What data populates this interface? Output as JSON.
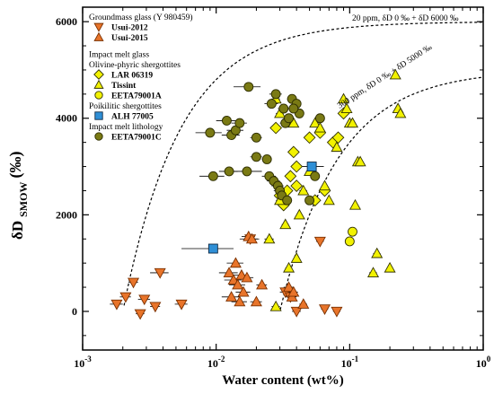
{
  "chart_data": {
    "type": "scatter",
    "x_scale": "log",
    "xlim": [
      0.001,
      1
    ],
    "ylim": [
      -800,
      6300
    ],
    "x_ticks": [
      "10^-3",
      "10^-2",
      "10^-1",
      "10^0"
    ],
    "y_ticks": [
      "0",
      "2000",
      "4000",
      "6000"
    ],
    "xlabel": "Water content (wt%)",
    "ylabel_main": "δD",
    "ylabel_sub": "SMOW",
    "ylabel_unit": "(‰)",
    "grid": false,
    "legend_position": "top-left",
    "legend": {
      "groups": [
        {
          "title": "Groundmass glass (Y 980459)",
          "entries": [
            {
              "label": "Usui-2012",
              "series": "usui2012"
            },
            {
              "label": "Usui-2015",
              "series": "usui2015"
            }
          ]
        },
        {
          "title": "Impact melt glass",
          "entries": []
        },
        {
          "title": "Olivine-phyric shergottites",
          "entries": [
            {
              "label": "LAR 06319",
              "series": "lar"
            },
            {
              "label": "Tissint",
              "series": "tissint"
            },
            {
              "label": "EETA79001A",
              "series": "eeta_a"
            }
          ]
        },
        {
          "title": "Poikilitic shergottites",
          "entries": [
            {
              "label": "ALH 77005",
              "series": "alh"
            }
          ]
        },
        {
          "title": "Impact melt lithology",
          "entries": [
            {
              "label": "EETA79001C",
              "series": "eeta_c"
            }
          ]
        }
      ]
    },
    "curves": [
      {
        "label": "20 ppm, δD 0 ‰ + δD 6000 ‰",
        "mix_ppm": 20,
        "dD_low": 0,
        "dD_high": 6000
      },
      {
        "label": "300 ppm, δD 0 ‰ + δD 5000 ‰",
        "mix_ppm": 300,
        "dD_low": 0,
        "dD_high": 5000
      }
    ],
    "series": [
      {
        "key": "usui2012",
        "name": "Usui-2012",
        "marker": "triangle-down",
        "color": "#E8742A",
        "edge": "#7a3000",
        "points": [
          [
            0.0018,
            150
          ],
          [
            0.0021,
            300
          ],
          [
            0.0024,
            600
          ],
          [
            0.0027,
            -50
          ],
          [
            0.0029,
            250
          ],
          [
            0.0035,
            100
          ],
          [
            0.0038,
            800
          ],
          [
            0.0055,
            150
          ],
          [
            0.018,
            1500
          ],
          [
            0.033,
            400
          ],
          [
            0.036,
            300
          ],
          [
            0.04,
            0
          ],
          [
            0.06,
            1450
          ],
          [
            0.065,
            50
          ],
          [
            0.08,
            0
          ]
        ],
        "xerr": [
          0.0002,
          0.0002,
          0.0002,
          0.0002,
          0.0003,
          0.0003,
          0.0006,
          0.0006,
          0.003,
          0.003,
          0.003,
          0.003,
          0.004,
          0.004,
          0.005
        ]
      },
      {
        "key": "usui2015",
        "name": "Usui-2015",
        "marker": "triangle-up",
        "color": "#E8742A",
        "edge": "#7a3000",
        "points": [
          [
            0.0125,
            800
          ],
          [
            0.013,
            300
          ],
          [
            0.0135,
            650
          ],
          [
            0.014,
            1000
          ],
          [
            0.0145,
            550
          ],
          [
            0.015,
            200
          ],
          [
            0.0155,
            750
          ],
          [
            0.016,
            400
          ],
          [
            0.017,
            700
          ],
          [
            0.0175,
            1550
          ],
          [
            0.0185,
            1500
          ],
          [
            0.02,
            200
          ],
          [
            0.022,
            550
          ],
          [
            0.035,
            500
          ],
          [
            0.037,
            300
          ],
          [
            0.038,
            400
          ],
          [
            0.045,
            150
          ]
        ],
        "xerr": [
          0.002,
          0.002,
          0.002,
          0.002,
          0.002,
          0.002,
          0.002,
          0.002,
          0.002,
          0.002,
          0.002,
          0.002,
          0.002,
          0.003,
          0.003,
          0.003,
          0.003
        ]
      },
      {
        "key": "lar",
        "name": "LAR 06319",
        "marker": "diamond",
        "color": "#F2F200",
        "edge": "#333300",
        "points": [
          [
            0.028,
            3800
          ],
          [
            0.03,
            2400
          ],
          [
            0.032,
            2200
          ],
          [
            0.034,
            2500
          ],
          [
            0.036,
            2800
          ],
          [
            0.038,
            3300
          ],
          [
            0.04,
            3000
          ],
          [
            0.04,
            2600
          ],
          [
            0.05,
            3600
          ],
          [
            0.055,
            2300
          ],
          [
            0.06,
            3700
          ],
          [
            0.065,
            2500
          ],
          [
            0.075,
            3500
          ],
          [
            0.082,
            3600
          ],
          [
            0.09,
            4100
          ]
        ],
        "xerr": [
          0.002,
          0.002,
          0.002,
          0.002,
          0.002,
          0.002,
          0.002,
          0.002,
          0.003,
          0.003,
          0.003,
          0.003,
          0.004,
          0.004,
          0.004
        ]
      },
      {
        "key": "tissint",
        "name": "Tissint",
        "marker": "triangle-up",
        "color": "#F2F200",
        "edge": "#333300",
        "points": [
          [
            0.025,
            1500
          ],
          [
            0.028,
            100
          ],
          [
            0.03,
            2300
          ],
          [
            0.033,
            1800
          ],
          [
            0.035,
            900
          ],
          [
            0.038,
            3900
          ],
          [
            0.04,
            1100
          ],
          [
            0.042,
            2000
          ],
          [
            0.045,
            2500
          ],
          [
            0.05,
            2900
          ],
          [
            0.055,
            3900
          ],
          [
            0.06,
            3800
          ],
          [
            0.065,
            2600
          ],
          [
            0.07,
            2300
          ],
          [
            0.08,
            3400
          ],
          [
            0.09,
            4400
          ],
          [
            0.095,
            4200
          ],
          [
            0.1,
            3900
          ],
          [
            0.105,
            3900
          ],
          [
            0.11,
            2200
          ],
          [
            0.115,
            3100
          ],
          [
            0.12,
            3100
          ],
          [
            0.15,
            800
          ],
          [
            0.16,
            1200
          ],
          [
            0.2,
            900
          ],
          [
            0.22,
            4900
          ],
          [
            0.23,
            4200
          ],
          [
            0.24,
            4100
          ],
          [
            0.028,
            4400
          ],
          [
            0.03,
            4100
          ]
        ],
        "xerr": [
          0.002,
          0.002,
          0.002,
          0.002,
          0.002,
          0.002,
          0.002,
          0.002,
          0.003,
          0.003,
          0.003,
          0.003,
          0.003,
          0.003,
          0.004,
          0.004,
          0.004,
          0.004,
          0.004,
          0.004,
          0.004,
          0.004,
          0.01,
          0.01,
          0.01,
          0.01,
          0.01,
          0.01,
          0.002,
          0.002
        ]
      },
      {
        "key": "eeta_a",
        "name": "EETA79001A",
        "marker": "circle",
        "color": "#F2F200",
        "edge": "#333300",
        "points": [
          [
            0.1,
            1450
          ],
          [
            0.105,
            1650
          ]
        ],
        "xerr": [
          0.005,
          0.005
        ]
      },
      {
        "key": "alh",
        "name": "ALH 77005",
        "marker": "square",
        "color": "#2F8FD6",
        "edge": "#102a44",
        "points": [
          [
            0.0095,
            1300
          ],
          [
            0.052,
            3000
          ]
        ],
        "xerr": [
          0.004,
          0.012
        ]
      },
      {
        "key": "eeta_c",
        "name": "EETA79001C",
        "marker": "circle",
        "color": "#7A7A14",
        "edge": "#2d2d00",
        "points": [
          [
            0.009,
            3700
          ],
          [
            0.0095,
            2800
          ],
          [
            0.012,
            3950
          ],
          [
            0.0125,
            2900
          ],
          [
            0.013,
            3650
          ],
          [
            0.014,
            3750
          ],
          [
            0.015,
            3900
          ],
          [
            0.0175,
            4650
          ],
          [
            0.017,
            2900
          ],
          [
            0.02,
            3600
          ],
          [
            0.02,
            3200
          ],
          [
            0.025,
            2800
          ],
          [
            0.026,
            4300
          ],
          [
            0.027,
            2700
          ],
          [
            0.028,
            4500
          ],
          [
            0.029,
            2600
          ],
          [
            0.03,
            2500
          ],
          [
            0.031,
            2400
          ],
          [
            0.032,
            4200
          ],
          [
            0.033,
            3900
          ],
          [
            0.034,
            2300
          ],
          [
            0.037,
            4400
          ],
          [
            0.04,
            4300
          ],
          [
            0.042,
            4100
          ],
          [
            0.038,
            4200
          ],
          [
            0.05,
            2300
          ],
          [
            0.055,
            2800
          ],
          [
            0.06,
            4000
          ],
          [
            0.024,
            3150
          ],
          [
            0.035,
            4000
          ]
        ],
        "xerr": [
          0.002,
          0.002,
          0.002,
          0.002,
          0.002,
          0.002,
          0.002,
          0.004,
          0.005,
          0.002,
          0.002,
          0.003,
          0.003,
          0.003,
          0.003,
          0.003,
          0.003,
          0.003,
          0.003,
          0.003,
          0.003,
          0.003,
          0.003,
          0.003,
          0.003,
          0.003,
          0.004,
          0.004,
          0.002,
          0.003
        ]
      }
    ]
  }
}
